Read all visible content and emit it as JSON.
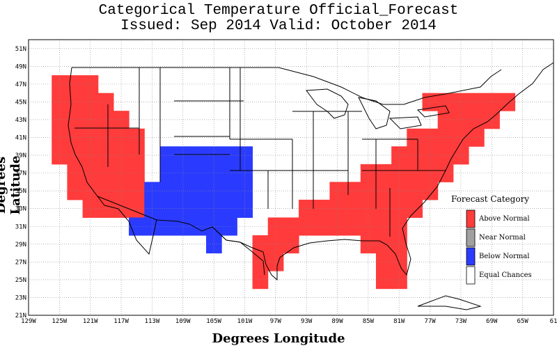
{
  "title": {
    "line1": "Categorical Temperature Official_Forecast",
    "line2": "Issued: Sep 2014 Valid: October 2014"
  },
  "axes": {
    "x_title": "Degrees Longitude",
    "y_title": "Degrees Latitude",
    "x_ticks": [
      "129W",
      "125W",
      "121W",
      "117W",
      "113W",
      "109W",
      "105W",
      "101W",
      "97W",
      "93W",
      "89W",
      "85W",
      "81W",
      "77W",
      "73W",
      "69W",
      "65W",
      "61"
    ],
    "y_ticks": [
      "21N",
      "23N",
      "25N",
      "27N",
      "29N",
      "31N",
      "33N",
      "35N",
      "37N",
      "39N",
      "41N",
      "43N",
      "45N",
      "47N",
      "49N",
      "51N"
    ],
    "lon_range": [
      -129,
      -61
    ],
    "lat_range": [
      21,
      52
    ]
  },
  "legend": {
    "title": "Forecast Category",
    "items": [
      {
        "label": "Above Normal",
        "color": "#ff3b3b"
      },
      {
        "label": "Near Normal",
        "color": "#a0a0a0"
      },
      {
        "label": "Below Normal",
        "color": "#2a3bff"
      },
      {
        "label": "Equal Chances",
        "color": "#ffffff"
      }
    ]
  },
  "chart_data": {
    "type": "heatmap",
    "cell_size_deg": 2,
    "categories": {
      "A": "Above Normal",
      "B": "Below Normal"
    },
    "regions": [
      {
        "category": "A",
        "cells": [
          [
            -125,
            47
          ],
          [
            -123,
            47
          ],
          [
            -121,
            47
          ],
          [
            -125,
            45
          ],
          [
            -123,
            45
          ],
          [
            -121,
            45
          ],
          [
            -119,
            45
          ],
          [
            -125,
            43
          ],
          [
            -123,
            43
          ],
          [
            -121,
            43
          ],
          [
            -119,
            43
          ],
          [
            -117,
            43
          ],
          [
            -125,
            41
          ],
          [
            -123,
            41
          ],
          [
            -121,
            41
          ],
          [
            -119,
            41
          ],
          [
            -117,
            41
          ],
          [
            -115,
            41
          ],
          [
            -125,
            39
          ],
          [
            -123,
            39
          ],
          [
            -121,
            39
          ],
          [
            -119,
            39
          ],
          [
            -117,
            39
          ],
          [
            -115,
            39
          ],
          [
            -123,
            37
          ],
          [
            -121,
            37
          ],
          [
            -119,
            37
          ],
          [
            -117,
            37
          ],
          [
            -115,
            37
          ],
          [
            -123,
            35
          ],
          [
            -121,
            35
          ],
          [
            -119,
            35
          ],
          [
            -117,
            35
          ],
          [
            -115,
            35
          ],
          [
            -121,
            33
          ],
          [
            -119,
            33
          ],
          [
            -117,
            33
          ],
          [
            -115,
            33
          ]
        ]
      },
      {
        "category": "B",
        "cells": [
          [
            -111,
            39
          ],
          [
            -109,
            39
          ],
          [
            -107,
            39
          ],
          [
            -105,
            39
          ],
          [
            -103,
            39
          ],
          [
            -101,
            39
          ],
          [
            -111,
            37
          ],
          [
            -109,
            37
          ],
          [
            -107,
            37
          ],
          [
            -105,
            37
          ],
          [
            -103,
            37
          ],
          [
            -101,
            37
          ],
          [
            -113,
            35
          ],
          [
            -111,
            35
          ],
          [
            -109,
            35
          ],
          [
            -107,
            35
          ],
          [
            -105,
            35
          ],
          [
            -103,
            35
          ],
          [
            -101,
            35
          ],
          [
            -113,
            33
          ],
          [
            -111,
            33
          ],
          [
            -109,
            33
          ],
          [
            -107,
            33
          ],
          [
            -105,
            33
          ],
          [
            -103,
            33
          ],
          [
            -101,
            33
          ],
          [
            -115,
            31
          ],
          [
            -113,
            31
          ],
          [
            -111,
            31
          ],
          [
            -109,
            31
          ],
          [
            -107,
            31
          ],
          [
            -105,
            31
          ],
          [
            -103,
            31
          ],
          [
            -115,
            31
          ],
          [
            -105,
            29
          ]
        ]
      },
      {
        "category": "A",
        "cells": [
          [
            -77,
            45
          ],
          [
            -75,
            45
          ],
          [
            -73,
            45
          ],
          [
            -71,
            45
          ],
          [
            -69,
            45
          ],
          [
            -67,
            45
          ],
          [
            -75,
            43
          ],
          [
            -73,
            43
          ],
          [
            -71,
            43
          ],
          [
            -69,
            43
          ],
          [
            -79,
            41
          ],
          [
            -77,
            41
          ],
          [
            -75,
            41
          ],
          [
            -73,
            41
          ],
          [
            -71,
            41
          ],
          [
            -81,
            39
          ],
          [
            -79,
            39
          ],
          [
            -77,
            39
          ],
          [
            -75,
            39
          ],
          [
            -73,
            39
          ],
          [
            -85,
            37
          ],
          [
            -83,
            37
          ],
          [
            -81,
            37
          ],
          [
            -79,
            37
          ],
          [
            -77,
            37
          ],
          [
            -75,
            37
          ],
          [
            -89,
            35
          ],
          [
            -87,
            35
          ],
          [
            -85,
            35
          ],
          [
            -83,
            35
          ],
          [
            -81,
            35
          ],
          [
            -79,
            35
          ],
          [
            -77,
            35
          ],
          [
            -93,
            33
          ],
          [
            -91,
            33
          ],
          [
            -89,
            33
          ],
          [
            -87,
            33
          ],
          [
            -85,
            33
          ],
          [
            -83,
            33
          ],
          [
            -81,
            33
          ],
          [
            -79,
            33
          ],
          [
            -97,
            31
          ],
          [
            -95,
            31
          ],
          [
            -93,
            31
          ],
          [
            -91,
            31
          ],
          [
            -89,
            31
          ],
          [
            -87,
            31
          ],
          [
            -85,
            31
          ],
          [
            -83,
            31
          ],
          [
            -81,
            31
          ],
          [
            -99,
            29
          ],
          [
            -97,
            29
          ],
          [
            -95,
            29
          ],
          [
            -85,
            29
          ],
          [
            -83,
            29
          ],
          [
            -81,
            29
          ],
          [
            -99,
            27
          ],
          [
            -97,
            27
          ],
          [
            -83,
            27
          ],
          [
            -81,
            27
          ],
          [
            -99,
            25
          ],
          [
            -83,
            25
          ],
          [
            -81,
            25
          ]
        ]
      }
    ]
  }
}
